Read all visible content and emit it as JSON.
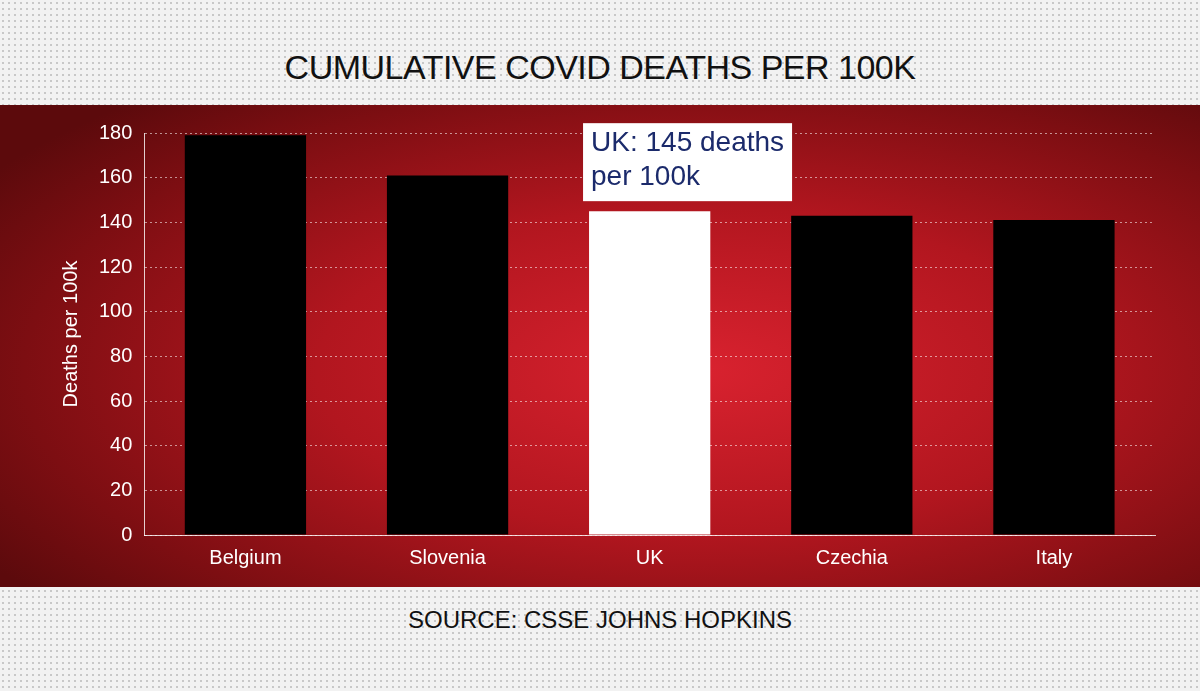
{
  "chart_data": {
    "type": "bar",
    "title": "CUMULATIVE COVID DEATHS PER 100K",
    "source": "SOURCE: CSSE JOHNS HOPKINS",
    "y_label": "Deaths per 100k",
    "categories": [
      "Belgium",
      "Slovenia",
      "UK",
      "Czechia",
      "Italy"
    ],
    "values": [
      179,
      161,
      145,
      143,
      141
    ],
    "colors": [
      "#000000",
      "#000000",
      "#ffffff",
      "#000000",
      "#000000"
    ],
    "ylim": [
      0,
      180
    ],
    "yticks": [
      0,
      20,
      40,
      60,
      80,
      100,
      120,
      140,
      160,
      180
    ],
    "grid": true,
    "legend": false,
    "data_labels": false,
    "annotations": [
      {
        "category": "UK",
        "text": [
          "UK: 145 deaths",
          "per 100k"
        ]
      }
    ]
  }
}
